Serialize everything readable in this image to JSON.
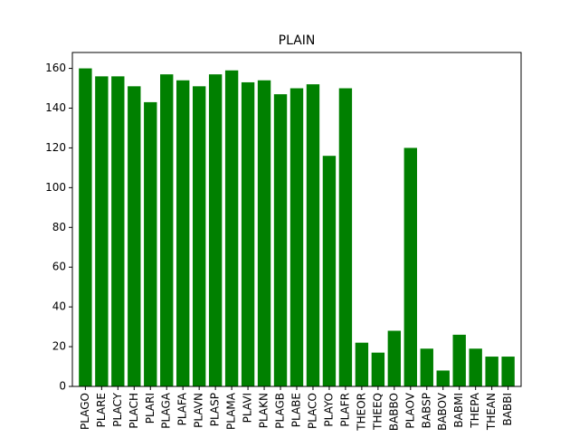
{
  "chart_data": {
    "type": "bar",
    "title": "PLAIN",
    "xlabel": "",
    "ylabel": "",
    "ylim": [
      0,
      168
    ],
    "yticks": [
      0,
      20,
      40,
      60,
      80,
      100,
      120,
      140,
      160
    ],
    "grid": false,
    "legend": "none",
    "bar_color": "#008000",
    "categories": [
      "PLAGO",
      "PLARE",
      "PLACY",
      "PLACH",
      "PLARI",
      "PLAGA",
      "PLAFA",
      "PLAVN",
      "PLASP",
      "PLAMA",
      "PLAVI",
      "PLAKN",
      "PLAGB",
      "PLABE",
      "PLACO",
      "PLAYO",
      "PLAFR",
      "THEOR",
      "THEEQ",
      "BABBO",
      "PLAOV",
      "BABSP",
      "BABOV",
      "BABMI",
      "THEPA",
      "THEAN",
      "BABBI"
    ],
    "values": [
      160,
      156,
      156,
      151,
      143,
      157,
      154,
      151,
      157,
      159,
      153,
      154,
      147,
      150,
      152,
      116,
      150,
      22,
      17,
      28,
      120,
      19,
      8,
      26,
      19,
      15,
      15
    ]
  }
}
